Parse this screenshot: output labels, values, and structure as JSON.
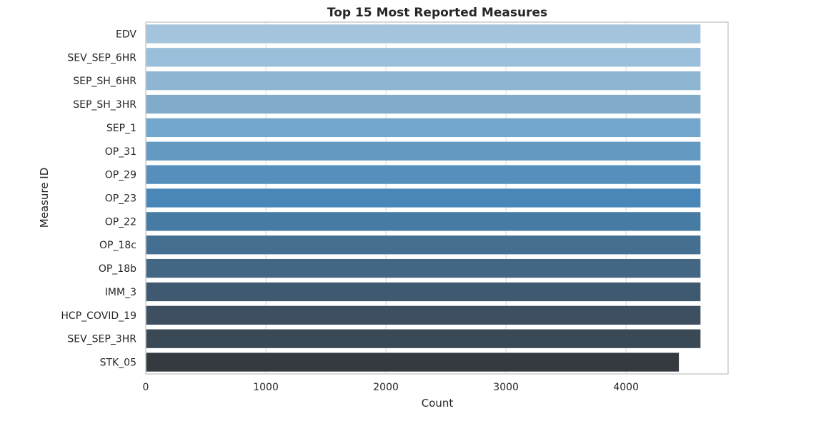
{
  "chart_data": {
    "type": "bar",
    "orientation": "horizontal",
    "title": "Top 15 Most Reported Measures",
    "xlabel": "Count",
    "ylabel": "Measure ID",
    "xlim": [
      0,
      4850
    ],
    "xticks": [
      0,
      1000,
      2000,
      3000,
      4000
    ],
    "grid": true,
    "categories": [
      "EDV",
      "SEV_SEP_6HR",
      "SEP_SH_6HR",
      "SEP_SH_3HR",
      "SEP_1",
      "OP_31",
      "OP_29",
      "OP_23",
      "OP_22",
      "OP_18c",
      "OP_18b",
      "IMM_3",
      "HCP_COVID_19",
      "SEV_SEP_3HR",
      "STK_05"
    ],
    "values": [
      4620,
      4620,
      4620,
      4620,
      4620,
      4620,
      4620,
      4620,
      4620,
      4620,
      4620,
      4620,
      4620,
      4620,
      4440
    ],
    "colors": [
      "#a3c4dc",
      "#99bfda",
      "#8eb6d3",
      "#81abcb",
      "#72a6cc",
      "#6499c2",
      "#568fbc",
      "#4a87b9",
      "#467ca3",
      "#446f91",
      "#436683",
      "#3f5a70",
      "#3e4f62",
      "#394955",
      "#343a3f"
    ]
  }
}
